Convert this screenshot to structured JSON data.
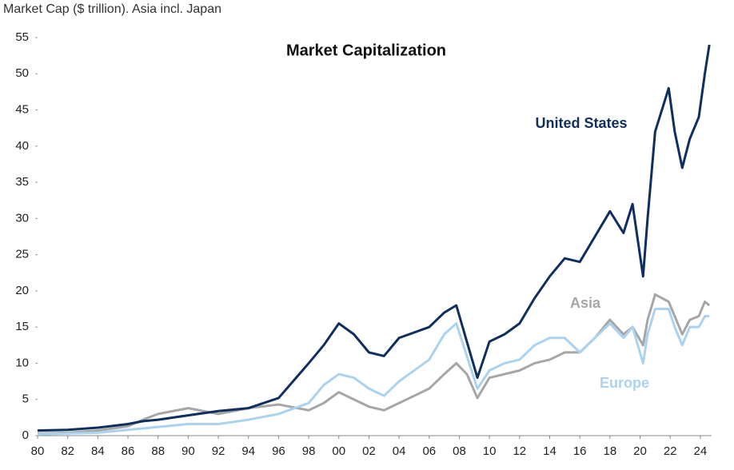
{
  "chart_data": {
    "type": "line",
    "title": "Market Capitalization",
    "y_label": "Market Cap ($ trillion). Asia incl. Japan",
    "x": [
      1980,
      1982,
      1984,
      1986,
      1987,
      1988,
      1990,
      1992,
      1994,
      1996,
      1998,
      1999,
      2000,
      2001,
      2002,
      2003,
      2004,
      2006,
      2007,
      2007.8,
      2008.5,
      2009.2,
      2010,
      2011,
      2012,
      2013,
      2014,
      2015,
      2016,
      2017,
      2018,
      2018.9,
      2019.5,
      2020.2,
      2020.5,
      2021,
      2021.9,
      2022.3,
      2022.8,
      2023.3,
      2023.9,
      2024.3,
      2024.6
    ],
    "series": [
      {
        "name": "Asia",
        "color": "#a6a6a6",
        "values": [
          0.3,
          0.4,
          0.7,
          1.3,
          2.2,
          3.0,
          3.8,
          3.0,
          3.8,
          4.3,
          3.5,
          4.5,
          6,
          5,
          4,
          3.5,
          4.5,
          6.5,
          8.5,
          10,
          8.5,
          5.2,
          8,
          8.5,
          9,
          10,
          10.5,
          11.5,
          11.5,
          13.5,
          16,
          14,
          15,
          12.5,
          16,
          19.5,
          18.5,
          16.5,
          14,
          16,
          16.5,
          18.5,
          18
        ]
      },
      {
        "name": "Europe",
        "color": "#a9d3f0",
        "values": [
          0.2,
          0.3,
          0.4,
          0.8,
          1.0,
          1.2,
          1.6,
          1.6,
          2.2,
          3.0,
          4.5,
          7,
          8.5,
          8,
          6.5,
          5.5,
          7.5,
          10.5,
          14,
          15.5,
          11,
          6.5,
          9,
          10,
          10.5,
          12.5,
          13.5,
          13.5,
          11.5,
          13.5,
          15.5,
          13.5,
          15,
          10,
          14,
          17.5,
          17.5,
          15,
          12.5,
          15,
          15,
          16.5,
          16.5
        ]
      },
      {
        "name": "United States",
        "color": "#0f2f5f",
        "values": [
          0.7,
          0.8,
          1.1,
          1.6,
          2.0,
          2.2,
          2.8,
          3.4,
          3.8,
          5.2,
          10,
          12.5,
          15.5,
          14,
          11.5,
          11,
          13.5,
          15,
          17,
          18,
          13,
          8,
          13,
          14,
          15.5,
          19,
          22,
          24.5,
          24,
          27.5,
          31,
          28,
          32,
          22,
          30,
          42,
          48,
          42,
          37,
          41,
          44,
          50,
          54
        ]
      }
    ],
    "xlim": [
      1980,
      2024.75
    ],
    "ylim": [
      0,
      55
    ],
    "xticks": [
      {
        "value": 1980,
        "label": "80"
      },
      {
        "value": 1982,
        "label": "82"
      },
      {
        "value": 1984,
        "label": "84"
      },
      {
        "value": 1986,
        "label": "86"
      },
      {
        "value": 1988,
        "label": "88"
      },
      {
        "value": 1990,
        "label": "90"
      },
      {
        "value": 1992,
        "label": "92"
      },
      {
        "value": 1994,
        "label": "94"
      },
      {
        "value": 1996,
        "label": "96"
      },
      {
        "value": 1998,
        "label": "98"
      },
      {
        "value": 2000,
        "label": "00"
      },
      {
        "value": 2002,
        "label": "02"
      },
      {
        "value": 2004,
        "label": "04"
      },
      {
        "value": 2006,
        "label": "06"
      },
      {
        "value": 2008,
        "label": "08"
      },
      {
        "value": 2010,
        "label": "10"
      },
      {
        "value": 2012,
        "label": "12"
      },
      {
        "value": 2014,
        "label": "14"
      },
      {
        "value": 2016,
        "label": "16"
      },
      {
        "value": 2018,
        "label": "18"
      },
      {
        "value": 2020,
        "label": "20"
      },
      {
        "value": 2022,
        "label": "22"
      },
      {
        "value": 2024,
        "label": "24"
      }
    ],
    "yticks": [
      0,
      5,
      10,
      15,
      20,
      25,
      30,
      35,
      40,
      45,
      50,
      55
    ],
    "grid": false
  }
}
